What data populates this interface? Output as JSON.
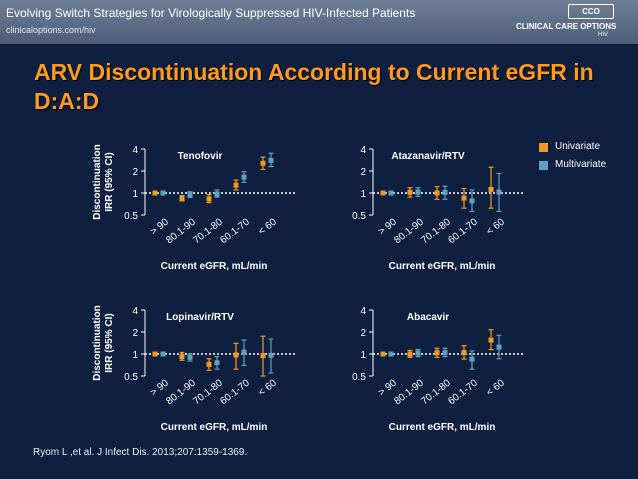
{
  "header": {
    "title": "Evolving Switch Strategies for Virologically Suppressed HIV-Infected Patients",
    "url": "clinicaloptions.com/hiv",
    "brand_badge": "CCO",
    "brand_name": "CLINICAL CARE OPTIONS",
    "brand_sub": "HIV"
  },
  "slide_title": "ARV Discontinuation According to Current eGFR in D:A:D",
  "citation": "Ryom L ,et al. J Infect Dis. 2013;207:1359-1369.",
  "legend": [
    {
      "label": "Univariate",
      "color": "#f29a1f"
    },
    {
      "label": "Multivariate",
      "color": "#5fa0c3"
    }
  ],
  "colors": {
    "univariate": "#f29a1f",
    "multivariate": "#5fa0c3",
    "background": "#0f1f3f",
    "title": "#ff9a1f"
  },
  "chart_data": [
    {
      "type": "scatter",
      "title": "Tenofovir",
      "xlabel": "Current eGFR, mL/min",
      "ylabel": "Discontinuation IRR (95% CI)",
      "categories": [
        "> 90",
        "80.1-90",
        "70.1-80",
        "60.1-70",
        "< 60"
      ],
      "yticks": [
        0.5,
        1,
        2,
        4
      ],
      "ylim": [
        0.5,
        4
      ],
      "yscale": "log",
      "reference_line": 1,
      "series": [
        {
          "name": "Univariate",
          "values": [
            1.0,
            0.84,
            0.83,
            1.28,
            2.55
          ],
          "lower": [
            1.0,
            0.78,
            0.74,
            1.1,
            2.1
          ],
          "upper": [
            1.0,
            0.92,
            0.95,
            1.5,
            3.1
          ]
        },
        {
          "name": "Multivariate",
          "values": [
            1.0,
            0.95,
            0.97,
            1.65,
            2.8
          ],
          "lower": [
            1.0,
            0.87,
            0.88,
            1.4,
            2.3
          ],
          "upper": [
            1.0,
            1.04,
            1.1,
            1.95,
            3.5
          ]
        }
      ]
    },
    {
      "type": "scatter",
      "title": "Atazanavir/RTV",
      "xlabel": "Current eGFR, mL/min",
      "ylabel": "",
      "categories": [
        "> 90",
        "80.1-90",
        "70.1-80",
        "60.1-70",
        "< 60"
      ],
      "yticks": [
        0.5,
        1,
        2,
        4
      ],
      "ylim": [
        0.5,
        4
      ],
      "yscale": "log",
      "reference_line": 1,
      "series": [
        {
          "name": "Univariate",
          "values": [
            1.0,
            1.02,
            1.0,
            0.85,
            1.12
          ],
          "lower": [
            1.0,
            0.88,
            0.82,
            0.62,
            0.62
          ],
          "upper": [
            1.0,
            1.18,
            1.22,
            1.15,
            2.25
          ]
        },
        {
          "name": "Multivariate",
          "values": [
            1.0,
            1.03,
            1.02,
            0.78,
            1.03
          ],
          "lower": [
            1.0,
            0.9,
            0.82,
            0.56,
            0.56
          ],
          "upper": [
            1.0,
            1.18,
            1.24,
            1.1,
            1.85
          ]
        }
      ]
    },
    {
      "type": "scatter",
      "title": "Lopinavir/RTV",
      "xlabel": "Current eGFR, mL/min",
      "ylabel": "Discontinuation IRR (95% CI)",
      "categories": [
        "> 90",
        "80.1-90",
        "70.1-80",
        "60.1-70",
        "< 60"
      ],
      "yticks": [
        0.5,
        1,
        2,
        4
      ],
      "ylim": [
        0.5,
        4
      ],
      "yscale": "log",
      "reference_line": 1,
      "series": [
        {
          "name": "Univariate",
          "values": [
            1.0,
            0.92,
            0.72,
            0.97,
            0.95
          ],
          "lower": [
            1.0,
            0.82,
            0.6,
            0.62,
            0.5
          ],
          "upper": [
            1.0,
            1.05,
            0.86,
            1.4,
            1.75
          ]
        },
        {
          "name": "Multivariate",
          "values": [
            1.0,
            0.9,
            0.76,
            1.06,
            0.96
          ],
          "lower": [
            1.0,
            0.8,
            0.62,
            0.7,
            0.55
          ],
          "upper": [
            1.0,
            1.01,
            0.92,
            1.55,
            1.6
          ]
        }
      ]
    },
    {
      "type": "scatter",
      "title": "Abacavir",
      "xlabel": "Current eGFR, mL/min",
      "ylabel": "",
      "categories": [
        "> 90",
        "80.1-90",
        "70.1-80",
        "60.1-70",
        "< 60"
      ],
      "yticks": [
        0.5,
        1,
        2,
        4
      ],
      "ylim": [
        0.5,
        4
      ],
      "yscale": "log",
      "reference_line": 1,
      "series": [
        {
          "name": "Univariate",
          "values": [
            1.0,
            1.0,
            1.04,
            1.05,
            1.55
          ],
          "lower": [
            1.0,
            0.9,
            0.9,
            0.85,
            1.15
          ],
          "upper": [
            1.0,
            1.12,
            1.2,
            1.3,
            2.15
          ]
        },
        {
          "name": "Multivariate",
          "values": [
            1.0,
            1.03,
            1.04,
            0.85,
            1.24
          ],
          "lower": [
            1.0,
            0.92,
            0.92,
            0.62,
            0.86
          ],
          "upper": [
            1.0,
            1.15,
            1.2,
            1.1,
            1.8
          ]
        }
      ]
    }
  ]
}
